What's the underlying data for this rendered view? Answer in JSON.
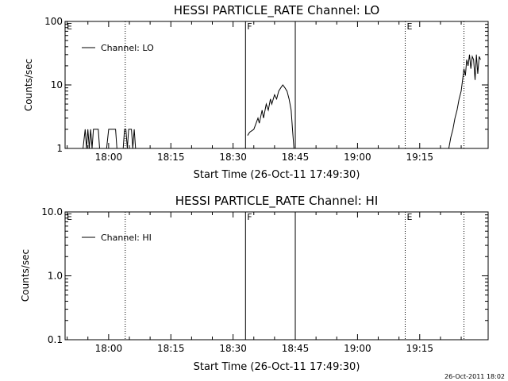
{
  "chart_data": [
    {
      "type": "line",
      "title": "HESSI PARTICLE_RATE Channel: LO",
      "xlabel": "Start Time (26-Oct-11 17:49:30)",
      "ylabel": "Counts/sec",
      "yscale": "log",
      "ylim": [
        1,
        100
      ],
      "xlim": [
        "17:49:30",
        "19:31:30"
      ],
      "x_ticks": [
        "18:00",
        "18:15",
        "18:30",
        "18:45",
        "19:00",
        "19:15"
      ],
      "y_ticks": [
        "1",
        "10",
        "100"
      ],
      "legend": {
        "entries": [
          "Channel: LO"
        ],
        "position": "top-left"
      },
      "series": [
        {
          "name": "Channel: LO",
          "segments": [
            {
              "x": [
                "17:53:50",
                "17:54:20",
                "17:54:40",
                "17:55:00",
                "17:55:20",
                "17:55:40",
                "17:56:00",
                "17:56:20",
                "17:57:30",
                "17:57:50",
                "17:59:30",
                "18:00:00",
                "18:01:40",
                "18:02:00",
                "18:03:30",
                "18:03:50",
                "18:04:10",
                "18:04:30",
                "18:04:50",
                "18:05:10",
                "18:05:30",
                "18:05:50",
                "18:06:10",
                "18:06:30",
                "18:06:50"
              ],
              "y": [
                1,
                2,
                1,
                2,
                1,
                2,
                1,
                2,
                2,
                1,
                1,
                2,
                2,
                1,
                1,
                2,
                2,
                1,
                2,
                2,
                2,
                1,
                2,
                1,
                1
              ]
            },
            {
              "x": [
                "18:33:30",
                "18:34:00",
                "18:35:00",
                "18:36:00",
                "18:36:20",
                "18:37:00",
                "18:37:20",
                "18:38:00",
                "18:38:30",
                "18:39:00",
                "18:39:20",
                "18:40:00",
                "18:40:30",
                "18:41:00",
                "18:41:30",
                "18:42:00",
                "18:42:30",
                "18:43:00",
                "18:43:30",
                "18:44:00",
                "18:44:20",
                "18:44:40"
              ],
              "y": [
                1.6,
                1.8,
                2,
                3,
                2.5,
                4,
                3,
                5,
                4,
                6,
                5,
                7,
                6,
                8,
                9,
                10,
                9,
                8,
                6,
                4,
                2,
                1
              ]
            },
            {
              "x": [
                "19:22:00",
                "19:22:30",
                "19:23:00",
                "19:23:30",
                "19:24:00",
                "19:24:30",
                "19:25:00",
                "19:25:20",
                "19:25:40",
                "19:26:00",
                "19:26:20",
                "19:26:40",
                "19:27:00",
                "19:27:20",
                "19:27:40",
                "19:28:00",
                "19:28:20",
                "19:28:40",
                "19:29:00",
                "19:29:20",
                "19:29:40"
              ],
              "y": [
                1,
                1.5,
                2,
                3,
                4,
                6,
                8,
                12,
                18,
                14,
                25,
                20,
                30,
                18,
                28,
                25,
                12,
                30,
                15,
                28,
                25
              ]
            }
          ]
        }
      ],
      "vlines": [
        {
          "x": "18:04:00",
          "style": "dotted",
          "label": ""
        },
        {
          "x": "18:33:00",
          "style": "solid",
          "label": "F"
        },
        {
          "x": "18:45:00",
          "style": "solid",
          "label": ""
        },
        {
          "x": "19:11:30",
          "style": "dotted",
          "label": "E"
        },
        {
          "x": "19:25:40",
          "style": "dotted",
          "label": ""
        }
      ],
      "corner_label": "E"
    },
    {
      "type": "line",
      "title": "HESSI PARTICLE_RATE Channel: HI",
      "xlabel": "Start Time (26-Oct-11 17:49:30)",
      "ylabel": "Counts/sec",
      "yscale": "log",
      "ylim": [
        0.1,
        10
      ],
      "xlim": [
        "17:49:30",
        "19:31:30"
      ],
      "x_ticks": [
        "18:00",
        "18:15",
        "18:30",
        "18:45",
        "19:00",
        "19:15"
      ],
      "y_ticks": [
        "0.1",
        "1.0",
        "10.0"
      ],
      "legend": {
        "entries": [
          "Channel: HI"
        ],
        "position": "top-left"
      },
      "series": [
        {
          "name": "Channel: HI",
          "segments": []
        }
      ],
      "vlines": [
        {
          "x": "18:04:00",
          "style": "dotted",
          "label": ""
        },
        {
          "x": "18:33:00",
          "style": "solid",
          "label": "F"
        },
        {
          "x": "18:45:00",
          "style": "solid",
          "label": ""
        },
        {
          "x": "19:11:30",
          "style": "dotted",
          "label": "E"
        },
        {
          "x": "19:25:40",
          "style": "dotted",
          "label": ""
        }
      ],
      "corner_label": "E"
    }
  ],
  "footer_timestamp": "26-Oct-2011 18:02"
}
